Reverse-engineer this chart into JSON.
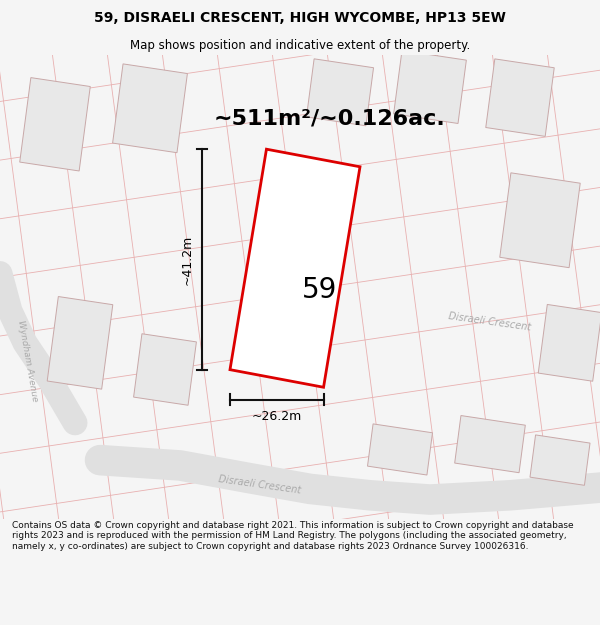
{
  "title": "59, DISRAELI CRESCENT, HIGH WYCOMBE, HP13 5EW",
  "subtitle": "Map shows position and indicative extent of the property.",
  "area_text": "~511m²/~0.126ac.",
  "label_59": "59",
  "dim_horiz": "~26.2m",
  "dim_vert": "~41.2m",
  "road_label_bottom": "Disraeli Crescent",
  "road_label_right": "Disraeli Crescent",
  "road_label_left": "Wyndham Avenue",
  "footer": "Contains OS data © Crown copyright and database right 2021. This information is subject to Crown copyright and database rights 2023 and is reproduced with the permission of HM Land Registry. The polygons (including the associated geometry, namely x, y co-ordinates) are subject to Crown copyright and database rights 2023 Ordnance Survey 100026316.",
  "bg_color": "#f5f5f5",
  "map_bg": "#ffffff",
  "building_fill": "#e8e8e8",
  "building_edge": "#c8a8a8",
  "parcel_line_color": "#e8b0b0",
  "road_fill": "#e0e0e0",
  "parcel_edge_color": "#dd0000",
  "road_text_color": "#aaaaaa",
  "title_color": "#000000",
  "footer_color": "#111111",
  "dim_line_color": "#111111"
}
